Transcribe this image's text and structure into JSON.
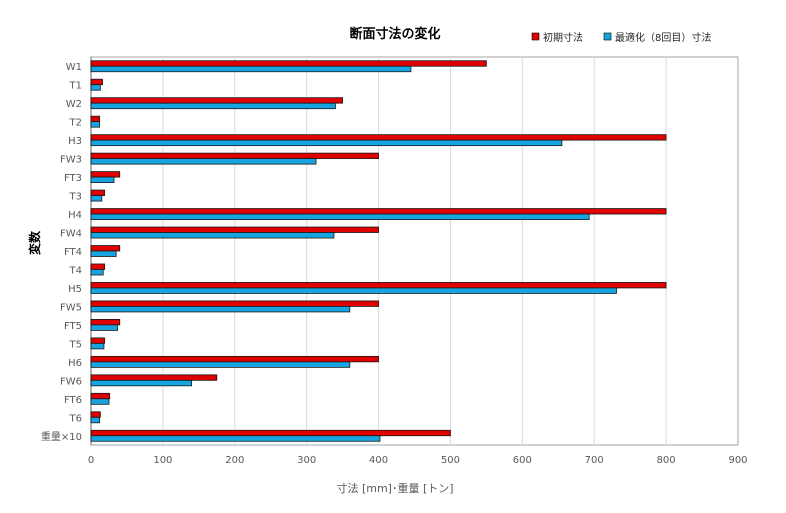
{
  "chart_data": {
    "type": "bar",
    "orientation": "horizontal",
    "title": "断面寸法の変化",
    "xlabel": "寸法 [mm]･重量 [トン]",
    "ylabel": "変数",
    "xlim": [
      0,
      900
    ],
    "xticks": [
      0,
      100,
      200,
      300,
      400,
      500,
      600,
      700,
      800,
      900
    ],
    "grid": "vertical",
    "legend_position": "top-right",
    "categories": [
      "W1",
      "T1",
      "W2",
      "T2",
      "H3",
      "FW3",
      "FT3",
      "T3",
      "H4",
      "FW4",
      "FT4",
      "T4",
      "H5",
      "FW5",
      "FT5",
      "T5",
      "H6",
      "FW6",
      "FT6",
      "T6",
      "重量×10"
    ],
    "series": [
      {
        "name": "初期寸法",
        "color": "#e00000",
        "values": [
          550,
          16,
          350,
          12,
          800,
          400,
          40,
          19,
          800,
          400,
          40,
          19,
          800,
          400,
          40,
          19,
          400,
          175,
          26,
          13,
          500
        ]
      },
      {
        "name": "最適化（8回目）寸法",
        "color": "#16a5e0",
        "values": [
          445,
          13,
          340,
          12,
          655,
          313,
          32,
          15,
          693,
          338,
          35,
          17,
          731,
          360,
          37,
          18,
          360,
          140,
          25,
          12,
          402
        ]
      }
    ]
  }
}
